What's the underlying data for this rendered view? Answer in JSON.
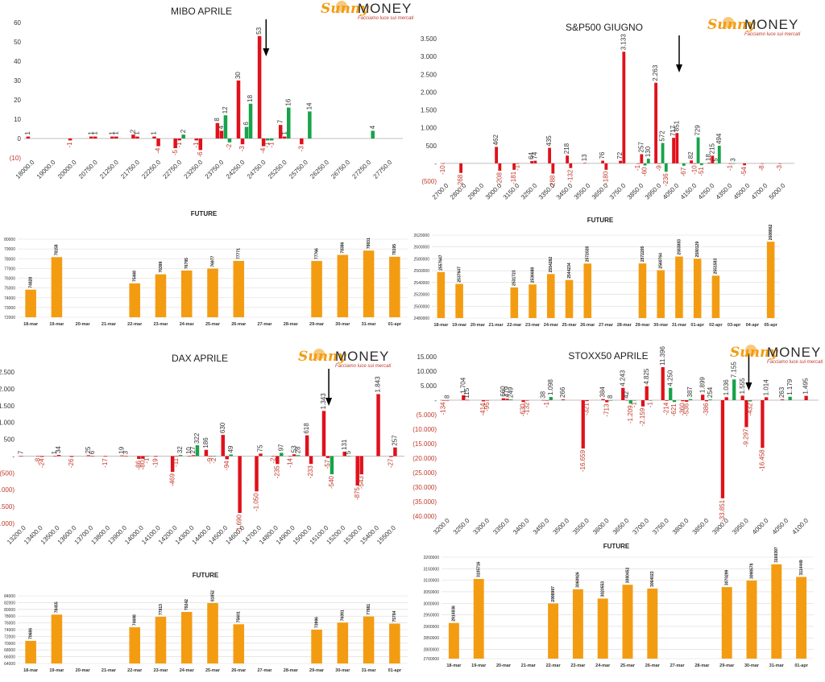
{
  "brand": {
    "name_part1": "Sunny",
    "name_part2": "MONEY",
    "tagline": "Facciamo luce sui mercati"
  },
  "top_left_label": "",
  "colors": {
    "put": "#e0111b",
    "call": "#17a34a",
    "future": "#f39c12",
    "neg_label": "#c0392b",
    "grid": "#d9d9d9",
    "axis": "#595959"
  },
  "chart_data": [
    {
      "id": "mibo",
      "type": "bar",
      "title": "MIBO APRILE",
      "ylim": [
        -10,
        60
      ],
      "yticks": [
        -10,
        0,
        10,
        20,
        30,
        40,
        50,
        60
      ],
      "ytick_labels": [
        "(10)",
        "0",
        "10",
        "20",
        "30",
        "40",
        "50",
        "60"
      ],
      "categories": [
        "18000.0",
        "19000.0",
        "20000.0",
        "20750.0",
        "21250.0",
        "21750.0",
        "22250.0",
        "22750.0",
        "23250.0",
        "23750.0",
        "24250.0",
        "24750.0",
        "25250.0",
        "25750.0",
        "26250.0",
        "26750.0",
        "27250.0",
        "27750.0"
      ],
      "series": [
        {
          "values": [
            1,
            0,
            -1,
            1,
            1,
            2,
            1,
            -5,
            -1,
            8,
            30,
            53,
            7,
            -3,
            0,
            0,
            0,
            0
          ]
        },
        {
          "values": [
            0,
            0,
            0,
            1,
            1,
            1,
            -4,
            -1,
            -6,
            4,
            -3,
            -4,
            1,
            0,
            0,
            0,
            0,
            0
          ]
        },
        {
          "values": [
            0,
            0,
            0,
            0,
            0,
            0,
            0,
            2,
            0,
            12,
            6,
            -1,
            16,
            14,
            0,
            0,
            4,
            0
          ]
        },
        {
          "values": [
            0,
            0,
            0,
            0,
            0,
            0,
            0,
            0,
            0,
            -2,
            18,
            -1,
            0,
            0,
            0,
            0,
            0,
            0
          ]
        }
      ],
      "arrow_category": "24750.0"
    },
    {
      "id": "spx",
      "type": "bar",
      "title": "S&P500 GIUGNO",
      "ylim": [
        -500,
        3500
      ],
      "yticks": [
        -500,
        0,
        500,
        1000,
        1500,
        2000,
        2500,
        3000,
        3500
      ],
      "ytick_labels": [
        "(500)",
        "-",
        "500",
        "1.000",
        "1.500",
        "2.000",
        "2.500",
        "3.000",
        "3.500"
      ],
      "categories": [
        "2700.0",
        "2800.0",
        "2900.0",
        "3000.0",
        "3150.0",
        "3250.0",
        "3350.0",
        "3450.0",
        "3550.0",
        "3650.0",
        "3750.0",
        "3850.0",
        "3950.0",
        "4050.0",
        "4150.0",
        "4250.0",
        "4350.0",
        "4500.0",
        "4700.0",
        "5000.0"
      ],
      "series": [
        {
          "values": [
            -10,
            -268,
            0,
            462,
            -181,
            64,
            435,
            218,
            13,
            76,
            72,
            -1,
            2263,
            717,
            82,
            18,
            0,
            -54,
            -8,
            -3
          ]
        },
        {
          "values": [
            0,
            0,
            0,
            -208,
            -1,
            74,
            -288,
            -132,
            0,
            -180,
            3133,
            257,
            -9,
            851,
            -10,
            215,
            -1,
            0,
            0,
            0
          ]
        },
        {
          "values": [
            0,
            0,
            0,
            0,
            0,
            0,
            0,
            0,
            0,
            0,
            0,
            -60,
            572,
            0,
            729,
            5,
            3,
            0,
            0,
            0
          ]
        },
        {
          "values": [
            0,
            0,
            0,
            0,
            0,
            0,
            0,
            0,
            0,
            0,
            0,
            130,
            -236,
            -67,
            -51,
            494,
            0,
            0,
            0,
            0
          ]
        }
      ],
      "arrow_category": "4050.0"
    },
    {
      "id": "dax",
      "type": "bar",
      "title": "DAX APRILE",
      "ylim": [
        -2000,
        2500
      ],
      "yticks": [
        -2000,
        -1500,
        -1000,
        -500,
        0,
        500,
        1000,
        1500,
        2000,
        2500
      ],
      "ytick_labels": [
        "(2.000)",
        "(1.500)",
        "(1.000)",
        "(500)",
        "-",
        "500",
        "1.000",
        "1.500",
        "2.000",
        "2.500"
      ],
      "categories": [
        "13200.0",
        "13400.0",
        "13500.0",
        "13600.0",
        "13700.0",
        "13800.0",
        "13900.0",
        "14000.0",
        "14100.0",
        "14200.0",
        "14300.0",
        "14400.0",
        "14500.0",
        "14600.0",
        "14700.0",
        "14800.0",
        "14900.0",
        "15000.0",
        "15100.0",
        "15200.0",
        "15300.0",
        "15400.0",
        "15500.0"
      ],
      "series": [
        {
          "values": [
            7,
            -8,
            1,
            -26,
            25,
            -17,
            19,
            -86,
            -19,
            -469,
            10,
            186,
            630,
            -1690,
            -1050,
            -2,
            -14,
            618,
            1343,
            0,
            -875,
            0,
            -27
          ]
        },
        {
          "values": [
            0,
            -24,
            34,
            0,
            6,
            0,
            3,
            -80,
            0,
            -11,
            27,
            -9,
            -94,
            0,
            75,
            -235,
            53,
            -233,
            -57,
            131,
            -543,
            1843,
            257
          ]
        },
        {
          "values": [
            0,
            0,
            0,
            0,
            0,
            0,
            0,
            -1,
            0,
            32,
            322,
            -2,
            49,
            0,
            0,
            97,
            28,
            0,
            -540,
            5,
            0,
            0,
            0
          ]
        }
      ],
      "arrow_category": "15100.0"
    },
    {
      "id": "stoxx",
      "type": "bar",
      "title": "STOXX50 APRILE",
      "ylim": [
        -40000,
        15000
      ],
      "yticks": [
        -40000,
        -35000,
        -30000,
        -25000,
        -20000,
        -15000,
        -10000,
        -5000,
        0,
        5000,
        10000,
        15000
      ],
      "ytick_labels": [
        "(40.000)",
        "(35.000)",
        "(30.000)",
        "(25.000)",
        "(20.000)",
        "(15.000)",
        "(10.000)",
        "(5.000)",
        "-",
        "5.000",
        "10.000",
        "15.000"
      ],
      "categories": [
        "3200.0",
        "3250.0",
        "3300.0",
        "3350.0",
        "3400.0",
        "3450.0",
        "3500.0",
        "3550.0",
        "3600.0",
        "3650.0",
        "3700.0",
        "3750.0",
        "3800.0",
        "3850.0",
        "3900.0",
        "3950.0",
        "4000.0",
        "4050.0",
        "4100.0"
      ],
      "series": [
        {
          "values": [
            -134,
            1704,
            -414,
            660,
            -630,
            38,
            266,
            -16659,
            384,
            4243,
            -2159,
            11396,
            -360,
            1899,
            -33851,
            1555,
            -16458,
            263,
            0
          ]
        },
        {
          "values": [
            8,
            115,
            -95,
            479,
            -132,
            -1,
            0,
            -321,
            -713,
            42,
            4825,
            -214,
            -536,
            -386,
            1036,
            -9297,
            1014,
            0,
            1495
          ]
        },
        {
          "values": [
            0,
            0,
            0,
            249,
            0,
            1098,
            0,
            0,
            8,
            -1209,
            -1,
            4250,
            387,
            254,
            0,
            -432,
            0,
            1179,
            0
          ]
        },
        {
          "values": [
            0,
            0,
            0,
            0,
            0,
            0,
            0,
            0,
            0,
            -1,
            0,
            -621,
            0,
            0,
            7155,
            0,
            0,
            0,
            0
          ]
        }
      ],
      "arrow_category": "3950.0"
    },
    {
      "id": "mibo_future",
      "type": "bar",
      "title": "FUTURE",
      "ylim": [
        72000,
        80000
      ],
      "yticks": [
        72000,
        73000,
        74000,
        75000,
        76000,
        77000,
        78000,
        79000,
        80000
      ],
      "ytick_labels": [
        "72000",
        "73000",
        "74000",
        "75000",
        "76000",
        "77000",
        "78000",
        "79000",
        "80000"
      ],
      "categories": [
        "18-mar",
        "19-mar",
        "20-mar",
        "21-mar",
        "22-mar",
        "23-mar",
        "24-mar",
        "25-mar",
        "26-mar",
        "27-mar",
        "28-mar",
        "29-mar",
        "30-mar",
        "31-mar",
        "01-apr"
      ],
      "values": [
        74828,
        78158,
        null,
        null,
        75468,
        76399,
        76785,
        76977,
        77771,
        null,
        null,
        77766,
        78386,
        78831,
        78195
      ],
      "value_labels": [
        "74828",
        "78158",
        "",
        "",
        "75468",
        "76399",
        "76785",
        "76977",
        "77771",
        "",
        "",
        "77766",
        "78386",
        "78831",
        "78195"
      ]
    },
    {
      "id": "spx_future",
      "type": "bar",
      "title": "FUTURE",
      "ylim": [
        2480000,
        2620000
      ],
      "yticks": [
        2480000,
        2500000,
        2520000,
        2540000,
        2560000,
        2580000,
        2600000,
        2620000
      ],
      "ytick_labels": [
        "2480000",
        "2500000",
        "2520000",
        "2540000",
        "2560000",
        "2580000",
        "2600000",
        "2620000"
      ],
      "categories": [
        "18-mar",
        "19-mar",
        "20-mar",
        "21-mar",
        "22-mar",
        "23-mar",
        "24-mar",
        "25-mar",
        "26-mar",
        "27-mar",
        "28-mar",
        "29-mar",
        "30-mar",
        "31-mar",
        "01-apr",
        "02-apr",
        "03-apr",
        "04-apr",
        "05-apr"
      ],
      "values": [
        2557647,
        2537647,
        null,
        null,
        2531723,
        2536688,
        2554282,
        2544234,
        2572028,
        null,
        null,
        2572205,
        2560764,
        2583883,
        2580129,
        2551583,
        null,
        null,
        2608862
      ],
      "value_labels": [
        "2557647",
        "2537647",
        "",
        "",
        "2531723",
        "2536688",
        "2554282",
        "2544234",
        "2572028",
        "",
        "",
        "2572205",
        "2560764",
        "2583883",
        "2580129",
        "2551583",
        "",
        "",
        "2608862"
      ]
    },
    {
      "id": "dax_future",
      "type": "bar",
      "title": "FUTURE",
      "ylim": [
        64000,
        84000
      ],
      "yticks": [
        64000,
        66000,
        68000,
        70000,
        72000,
        74000,
        76000,
        78000,
        80000,
        82000,
        84000
      ],
      "ytick_labels": [
        "64000",
        "66000",
        "68000",
        "70000",
        "72000",
        "74000",
        "76000",
        "78000",
        "80000",
        "82000",
        "84000"
      ],
      "categories": [
        "18-mar",
        "19-mar",
        "20-mar",
        "21-mar",
        "22-mar",
        "23-mar",
        "24-mar",
        "25-mar",
        "26-mar",
        "27-mar",
        "28-mar",
        "29-mar",
        "30-mar",
        "31-mar",
        "01-apr"
      ],
      "values": [
        70686,
        78455,
        null,
        null,
        74698,
        77813,
        79242,
        81852,
        75601,
        null,
        null,
        73996,
        76091,
        77881,
        75784
      ],
      "value_labels": [
        "70686",
        "78455",
        "",
        "",
        "74698",
        "77813",
        "79242",
        "81852",
        "75601",
        "",
        "",
        "73996",
        "76091",
        "77881",
        "75784"
      ]
    },
    {
      "id": "stoxx_future",
      "type": "bar",
      "title": "FUTURE",
      "ylim": [
        2760000,
        3200000
      ],
      "yticks": [
        2760000,
        2800000,
        2850000,
        2900000,
        2950000,
        3000000,
        3050000,
        3100000,
        3150000,
        3200000
      ],
      "ytick_labels": [
        "2760000",
        "2800000",
        "2850000",
        "2900000",
        "2950000",
        "3000000",
        "3050000",
        "3100000",
        "3150000",
        "3200000"
      ],
      "categories": [
        "18-mar",
        "19-mar",
        "20-mar",
        "21-mar",
        "22-mar",
        "23-mar",
        "24-mar",
        "25-mar",
        "26-mar",
        "27-mar",
        "28-mar",
        "29-mar",
        "30-mar",
        "31-mar",
        "01-apr"
      ],
      "values": [
        2914836,
        3105716,
        null,
        null,
        2998997,
        3060926,
        3020553,
        3080452,
        3064023,
        null,
        null,
        3070299,
        3098578,
        3169397,
        3114449
      ],
      "value_labels": [
        "2914836",
        "3105716",
        "",
        "",
        "2998997",
        "3060926",
        "3020553",
        "3080452",
        "3064023",
        "",
        "",
        "3070299",
        "3098578",
        "3169397",
        "3114449"
      ]
    }
  ]
}
